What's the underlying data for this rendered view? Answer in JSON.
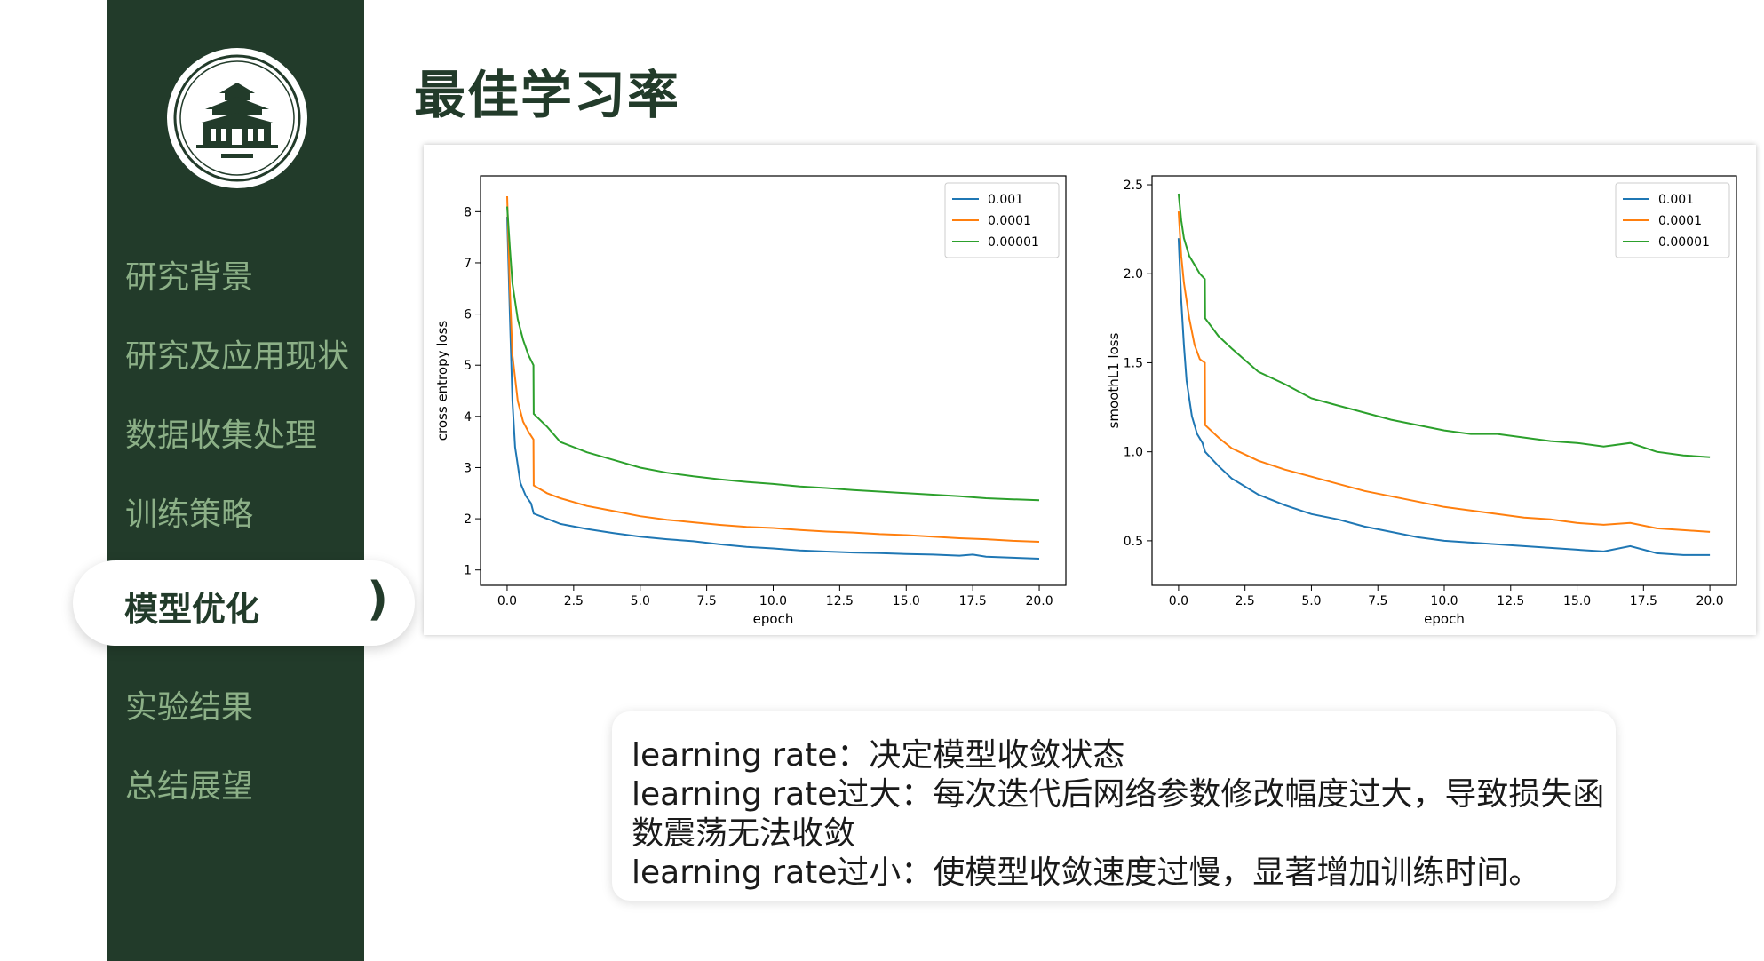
{
  "slide": {
    "title": "最佳学习率"
  },
  "sidebar": {
    "items": [
      {
        "label": "研究背景"
      },
      {
        "label": "研究及应用现状"
      },
      {
        "label": "数据收集处理"
      },
      {
        "label": "训练策略"
      },
      {
        "label": "模型优化"
      },
      {
        "label": "实验结果"
      },
      {
        "label": "总结展望"
      }
    ],
    "active_paren": ")"
  },
  "notes": {
    "lines": [
      "learning rate：决定模型收敛状态",
      "learning rate过大：每次迭代后网络参数修改幅度过大，导致损失函",
      "数震荡无法收敛",
      "learning rate过小：使模型收敛速度过慢，显著增加训练时间。"
    ]
  },
  "colors": {
    "sidebar_bg": "#223b2a",
    "nav_text": "#8cb087",
    "series": [
      "#1f77b4",
      "#ff7f0e",
      "#2ca02c"
    ]
  },
  "chart_data": [
    {
      "type": "line",
      "xlabel": "epoch",
      "ylabel": "cross entropy loss",
      "xlim": [
        -1,
        21
      ],
      "ylim": [
        0.7,
        8.7
      ],
      "xticks": [
        "0.0",
        "2.5",
        "5.0",
        "7.5",
        "10.0",
        "12.5",
        "15.0",
        "17.5",
        "20.0"
      ],
      "yticks": [
        "1",
        "2",
        "3",
        "4",
        "5",
        "6",
        "7",
        "8"
      ],
      "legend_position": "top-right",
      "grid": false,
      "series": [
        {
          "name": "0.001",
          "x": [
            0,
            0.1,
            0.2,
            0.3,
            0.5,
            0.7,
            0.9,
            1.0,
            1.5,
            2.0,
            3.0,
            4.0,
            5.0,
            6.0,
            7.0,
            8.0,
            9.0,
            10.0,
            11.0,
            12.0,
            13.0,
            14.0,
            15.0,
            16.0,
            17.0,
            17.5,
            18.0,
            19.0,
            20.0
          ],
          "y": [
            7.9,
            6.0,
            4.3,
            3.4,
            2.7,
            2.45,
            2.3,
            2.1,
            2.0,
            1.9,
            1.8,
            1.72,
            1.65,
            1.6,
            1.56,
            1.5,
            1.45,
            1.42,
            1.38,
            1.36,
            1.34,
            1.33,
            1.31,
            1.3,
            1.28,
            1.3,
            1.26,
            1.24,
            1.22
          ]
        },
        {
          "name": "0.0001",
          "x": [
            0,
            0.1,
            0.2,
            0.4,
            0.6,
            0.8,
            0.99,
            1.0,
            1.5,
            2.0,
            3.0,
            4.0,
            5.0,
            6.0,
            7.0,
            8.0,
            9.0,
            10.0,
            11.0,
            12.0,
            13.0,
            14.0,
            15.0,
            16.0,
            17.0,
            18.0,
            19.0,
            20.0
          ],
          "y": [
            8.3,
            6.5,
            5.2,
            4.3,
            3.9,
            3.7,
            3.55,
            2.65,
            2.5,
            2.4,
            2.25,
            2.15,
            2.05,
            1.98,
            1.93,
            1.88,
            1.84,
            1.82,
            1.78,
            1.75,
            1.73,
            1.7,
            1.68,
            1.65,
            1.62,
            1.6,
            1.57,
            1.55
          ]
        },
        {
          "name": "0.00001",
          "x": [
            0,
            0.1,
            0.2,
            0.4,
            0.6,
            0.8,
            0.99,
            1.0,
            1.5,
            2.0,
            3.0,
            4.0,
            5.0,
            6.0,
            7.0,
            8.0,
            9.0,
            10.0,
            11.0,
            12.0,
            13.0,
            14.0,
            15.0,
            16.0,
            17.0,
            18.0,
            19.0,
            20.0
          ],
          "y": [
            8.1,
            7.3,
            6.6,
            5.9,
            5.5,
            5.2,
            5.0,
            4.05,
            3.8,
            3.5,
            3.3,
            3.15,
            3.0,
            2.9,
            2.83,
            2.77,
            2.72,
            2.68,
            2.63,
            2.6,
            2.56,
            2.53,
            2.5,
            2.47,
            2.44,
            2.4,
            2.38,
            2.36
          ]
        }
      ]
    },
    {
      "type": "line",
      "xlabel": "epoch",
      "ylabel": "smoothL1 loss",
      "xlim": [
        -1,
        21
      ],
      "ylim": [
        0.25,
        2.55
      ],
      "xticks": [
        "0.0",
        "2.5",
        "5.0",
        "7.5",
        "10.0",
        "12.5",
        "15.0",
        "17.5",
        "20.0"
      ],
      "yticks": [
        "0.5",
        "1.0",
        "1.5",
        "2.0",
        "2.5"
      ],
      "legend_position": "top-right",
      "grid": false,
      "series": [
        {
          "name": "0.001",
          "x": [
            0,
            0.1,
            0.2,
            0.3,
            0.5,
            0.7,
            0.9,
            1.0,
            1.5,
            2.0,
            3.0,
            4.0,
            5.0,
            6.0,
            7.0,
            8.0,
            9.0,
            10.0,
            11.0,
            12.0,
            13.0,
            14.0,
            15.0,
            16.0,
            17.0,
            18.0,
            19.0,
            20.0
          ],
          "y": [
            2.2,
            1.85,
            1.6,
            1.4,
            1.2,
            1.1,
            1.05,
            1.0,
            0.92,
            0.85,
            0.76,
            0.7,
            0.65,
            0.62,
            0.58,
            0.55,
            0.52,
            0.5,
            0.49,
            0.48,
            0.47,
            0.46,
            0.45,
            0.44,
            0.47,
            0.43,
            0.42,
            0.42
          ]
        },
        {
          "name": "0.0001",
          "x": [
            0,
            0.1,
            0.2,
            0.4,
            0.6,
            0.8,
            0.99,
            1.0,
            1.5,
            2.0,
            3.0,
            4.0,
            5.0,
            6.0,
            7.0,
            8.0,
            9.0,
            10.0,
            11.0,
            12.0,
            13.0,
            14.0,
            15.0,
            16.0,
            17.0,
            18.0,
            19.0,
            20.0
          ],
          "y": [
            2.35,
            2.1,
            1.95,
            1.75,
            1.6,
            1.52,
            1.5,
            1.15,
            1.08,
            1.02,
            0.95,
            0.9,
            0.86,
            0.82,
            0.78,
            0.75,
            0.72,
            0.69,
            0.67,
            0.65,
            0.63,
            0.62,
            0.6,
            0.59,
            0.6,
            0.57,
            0.56,
            0.55
          ]
        },
        {
          "name": "0.00001",
          "x": [
            0,
            0.1,
            0.2,
            0.4,
            0.6,
            0.8,
            0.99,
            1.0,
            1.5,
            2.0,
            3.0,
            4.0,
            5.0,
            6.0,
            7.0,
            8.0,
            9.0,
            10.0,
            11.0,
            12.0,
            13.0,
            14.0,
            15.0,
            16.0,
            17.0,
            18.0,
            19.0,
            20.0
          ],
          "y": [
            2.45,
            2.3,
            2.2,
            2.1,
            2.05,
            2.0,
            1.97,
            1.75,
            1.65,
            1.58,
            1.45,
            1.38,
            1.3,
            1.26,
            1.22,
            1.18,
            1.15,
            1.12,
            1.1,
            1.1,
            1.08,
            1.06,
            1.05,
            1.03,
            1.05,
            1.0,
            0.98,
            0.97
          ]
        }
      ]
    }
  ]
}
